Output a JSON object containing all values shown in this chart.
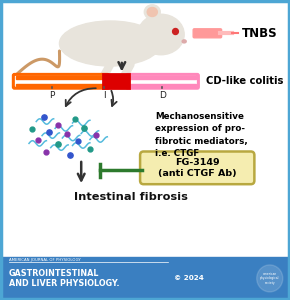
{
  "bg_color": "#ffffff",
  "border_color": "#4da6d4",
  "footer_bg": "#3a7fc1",
  "footer_text_small": "AMERICAN JOURNAL OF PHYSIOLOGY",
  "footer_text_large": "GASTROINTESTINAL\nAND LIVER PHYSIOLOGY.",
  "footer_year": "© 2024",
  "tnbs_label": "TNBS",
  "colitis_label": "CD-like colitis",
  "mech_label": "Mechanosensitive\nexpression of pro-\nfibrotic mediators,\ni.e. CTGF",
  "fg_label": "FG-3149\n(anti CTGF Ab)",
  "fibrosis_label": "Intestinal fibrosis",
  "p_label": "P",
  "i_label": "I",
  "d_label": "D",
  "orange_color": "#ff6600",
  "red_color": "#dd0000",
  "pink_color": "#ff88bb",
  "green_color": "#2d7a2d",
  "tan_border": "#b8a840",
  "tan_fill": "#f5edb0",
  "mouse_color": "#e8e4dc",
  "mouse_ear_inner": "#f0c4b0",
  "mouse_tail": "#cc9966",
  "syringe_color": "#ff9999",
  "dot_blue": "#3355cc",
  "dot_purple": "#8833aa",
  "dot_teal": "#229988",
  "wave_color": "#55bbdd",
  "arrow_color": "#333333"
}
